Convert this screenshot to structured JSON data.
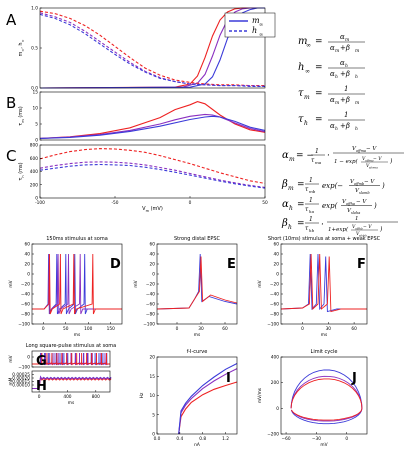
{
  "panel_letters": [
    "A",
    "B",
    "C"
  ],
  "colors": {
    "red": "#ee2222",
    "blue": "#3b3bd9",
    "purple": "#8a30c0"
  },
  "legend_A": [
    "m",
    "h"
  ],
  "legend_A_sub": "∞",
  "equations": {
    "m_inf_lhs": "m",
    "h_inf_lhs": "h",
    "inf_sub": "∞",
    "eq_sign": "=",
    "m_inf_num": "α",
    "m_inf_num_sub": "m",
    "m_inf_den": "α",
    "m_inf_den_sub": "m",
    "m_inf_den_plus": "+β",
    "h_inf_num": "α",
    "h_inf_num_sub": "h",
    "h_inf_den": "α",
    "h_inf_den_sub": "h",
    "h_inf_den_plus": "+β",
    "tau_m_lhs": "τ",
    "tau_m_sub": "m",
    "tau_m_num": "1",
    "tau_m_den": "α",
    "tau_h_lhs": "τ",
    "tau_h_sub": "h",
    "tau_h_num": "1",
    "tau_h_den": "α",
    "alpha_m_lhs": "α",
    "alpha_m_rhs": "= −",
    "alpha_m_frac_num": "1",
    "alpha_m_frac_den": "τ",
    "alpha_m_frac_den_sub": "ma",
    "alpha_m_cdot": "·",
    "alpha_m_num": "V",
    "alpha_m_num_sub": "offma",
    "alpha_m_num_rest": " − V",
    "alpha_m_den": "1 − exp(",
    "alpha_m_den_v": "V",
    "alpha_m_den_v_sub": "offma",
    "alpha_m_den_rest": " − V",
    "alpha_m_den_slope": "V",
    "alpha_m_den_slope_sub": "sloma",
    "alpha_m_den_close": ")",
    "beta_m_lhs": "β",
    "beta_m_sub": "m",
    "beta_m_eq": "=",
    "beta_m_frac_num": "1",
    "beta_m_frac_den": "τ",
    "beta_m_frac_den_sub": "mb",
    "beta_m_exp": "exp(−",
    "beta_m_exp_num": "V",
    "beta_m_exp_num_sub": "offmb",
    "beta_m_exp_num_rest": " − V",
    "beta_m_exp_den": "V",
    "beta_m_exp_den_sub": "slomb",
    "beta_m_close": ")",
    "alpha_h_lhs": "α",
    "alpha_h_sub": "h",
    "alpha_h_eq": "=",
    "alpha_h_frac_num": "1",
    "alpha_h_frac_den": "τ",
    "alpha_h_frac_den_sub": "ha",
    "alpha_h_exp": "exp(",
    "alpha_h_exp_num": "V",
    "alpha_h_exp_num_sub": "offha",
    "alpha_h_exp_num_rest": " − V",
    "alpha_h_exp_den": "V",
    "alpha_h_exp_den_sub": "sloha",
    "alpha_h_close": ")",
    "beta_h_lhs": "β",
    "beta_h_sub": "h",
    "beta_h_eq": "=",
    "beta_h_frac_num": "1",
    "beta_h_frac_den": "τ",
    "beta_h_frac_den_sub": "hb",
    "beta_h_cdot": "·",
    "beta_h_num": "1",
    "beta_h_den": "1+exp(",
    "beta_h_den_v": "V",
    "beta_h_den_v_sub": "offhb",
    "beta_h_den_rest": " − V",
    "beta_h_den_slope": "V",
    "beta_h_den_slope_sub": "slohb",
    "beta_h_den_close": ")"
  },
  "chart_data": [
    {
      "panel": "A",
      "type": "line",
      "xlim": [
        -100,
        50
      ],
      "ylim": [
        0,
        1
      ],
      "ylabel": "m",
      "ylabel_sub": "∞",
      "ylabel_sep": ",",
      "ylabel2": "h",
      "ylabel2_sub": "∞",
      "yticks": [
        "0.0",
        "0.5",
        "1.0"
      ],
      "xticks": [],
      "series": [
        {
          "color": "red",
          "dashed": false,
          "x": [
            -100,
            -10,
            0,
            5,
            10,
            15,
            20,
            25,
            30,
            35,
            50
          ],
          "y": [
            0,
            0.01,
            0.05,
            0.15,
            0.38,
            0.65,
            0.85,
            0.95,
            0.99,
            1,
            1
          ]
        },
        {
          "color": "purple",
          "dashed": false,
          "x": [
            -100,
            -5,
            5,
            10,
            15,
            20,
            25,
            30,
            35,
            40,
            50
          ],
          "y": [
            0,
            0.01,
            0.06,
            0.17,
            0.4,
            0.66,
            0.85,
            0.95,
            0.99,
            1,
            1
          ]
        },
        {
          "color": "blue",
          "dashed": false,
          "x": [
            -100,
            0,
            10,
            15,
            20,
            25,
            30,
            35,
            40,
            45,
            50
          ],
          "y": [
            0,
            0.01,
            0.05,
            0.14,
            0.35,
            0.62,
            0.83,
            0.94,
            0.98,
            1,
            1
          ]
        },
        {
          "color": "red",
          "dashed": true,
          "x": [
            -100,
            -90,
            -80,
            -70,
            -60,
            -50,
            -40,
            -30,
            -20,
            -10,
            0,
            10,
            20,
            30,
            40,
            50
          ],
          "y": [
            0.96,
            0.93,
            0.87,
            0.78,
            0.66,
            0.52,
            0.38,
            0.25,
            0.16,
            0.1,
            0.07,
            0.05,
            0.04,
            0.04,
            0.03,
            0.03
          ]
        },
        {
          "color": "purple",
          "dashed": true,
          "x": [
            -100,
            -90,
            -80,
            -70,
            -60,
            -50,
            -40,
            -30,
            -20,
            -10,
            0,
            10,
            20,
            30,
            40,
            50
          ],
          "y": [
            0.94,
            0.89,
            0.82,
            0.71,
            0.58,
            0.45,
            0.32,
            0.21,
            0.13,
            0.08,
            0.05,
            0.04,
            0.03,
            0.03,
            0.03,
            0.02
          ]
        },
        {
          "color": "blue",
          "dashed": true,
          "x": [
            -100,
            -90,
            -80,
            -70,
            -60,
            -50,
            -40,
            -30,
            -20,
            -10,
            0,
            10,
            20,
            30,
            40,
            50
          ],
          "y": [
            0.92,
            0.87,
            0.79,
            0.68,
            0.55,
            0.42,
            0.3,
            0.2,
            0.12,
            0.08,
            0.05,
            0.04,
            0.03,
            0.03,
            0.02,
            0.02
          ]
        }
      ]
    },
    {
      "panel": "B",
      "type": "line",
      "xlim": [
        -100,
        50
      ],
      "ylim": [
        0,
        15
      ],
      "ylabel": "τ",
      "ylabel_sub": "m",
      "ylabel_unit": " (ms)",
      "yticks": [
        "0",
        "5",
        "10",
        "15"
      ],
      "xticks": [],
      "series": [
        {
          "color": "red",
          "dashed": false,
          "x": [
            -100,
            -80,
            -60,
            -40,
            -20,
            -10,
            0,
            5,
            10,
            20,
            30,
            40,
            50
          ],
          "y": [
            0.5,
            1,
            2,
            3.8,
            7,
            9.5,
            11,
            12,
            11.3,
            7.8,
            5,
            3.2,
            2.4
          ]
        },
        {
          "color": "purple",
          "dashed": false,
          "x": [
            -100,
            -80,
            -60,
            -40,
            -20,
            -10,
            0,
            10,
            15,
            20,
            30,
            40,
            50
          ],
          "y": [
            0.5,
            0.9,
            1.7,
            3,
            5,
            6.3,
            7.4,
            8,
            7.8,
            7.2,
            5.3,
            3.6,
            2.6
          ]
        },
        {
          "color": "blue",
          "dashed": false,
          "x": [
            -100,
            -80,
            -60,
            -40,
            -20,
            0,
            10,
            15,
            20,
            30,
            40,
            50
          ],
          "y": [
            0.5,
            0.8,
            1.5,
            2.7,
            4.3,
            6.4,
            7.2,
            7.4,
            7.2,
            5.8,
            4,
            3
          ]
        }
      ]
    },
    {
      "panel": "C",
      "type": "line",
      "xlim": [
        -100,
        50
      ],
      "ylim": [
        0,
        800
      ],
      "ylabel": "τ",
      "ylabel_sub": "h",
      "ylabel_unit": " (ms)",
      "yticks": [
        "0",
        "200",
        "400",
        "600",
        "800"
      ],
      "xticks": [
        "-100",
        "-50",
        "0",
        "50"
      ],
      "xlabel": "V",
      "xlabel_sub": "m",
      "xlabel_unit": " (mV)",
      "series": [
        {
          "color": "red",
          "dashed": true,
          "x": [
            -100,
            -90,
            -80,
            -70,
            -60,
            -50,
            -40,
            -30,
            -20,
            -10,
            0,
            10,
            20,
            30,
            40,
            50
          ],
          "y": [
            590,
            650,
            700,
            730,
            745,
            740,
            720,
            690,
            640,
            580,
            520,
            450,
            380,
            320,
            260,
            220
          ]
        },
        {
          "color": "purple",
          "dashed": true,
          "x": [
            -100,
            -90,
            -80,
            -70,
            -60,
            -50,
            -40,
            -30,
            -20,
            -10,
            0,
            10,
            20,
            30,
            40,
            50
          ],
          "y": [
            450,
            490,
            520,
            540,
            545,
            540,
            525,
            500,
            460,
            420,
            370,
            320,
            270,
            230,
            190,
            160
          ]
        },
        {
          "color": "blue",
          "dashed": true,
          "x": [
            -100,
            -90,
            -80,
            -70,
            -60,
            -50,
            -40,
            -30,
            -20,
            -10,
            0,
            10,
            20,
            30,
            40,
            50
          ],
          "y": [
            420,
            450,
            480,
            500,
            505,
            500,
            490,
            465,
            430,
            390,
            345,
            300,
            255,
            215,
            180,
            150
          ]
        }
      ]
    },
    {
      "panel": "D",
      "type": "line",
      "title": "150ms stimulus at soma",
      "xlim": [
        -25,
        175
      ],
      "ylim": [
        -100,
        60
      ],
      "xticks": [
        "0",
        "50",
        "100",
        "150"
      ],
      "yticks": [
        "−100",
        "−80",
        "−60",
        "−40",
        "−20",
        "0",
        "20",
        "40",
        "60"
      ],
      "xlabel": "ms",
      "ylabel": "mV"
    },
    {
      "panel": "E",
      "type": "line",
      "title": "Strong distal EPSC",
      "xlim": [
        -25,
        75
      ],
      "ylim": [
        -100,
        60
      ],
      "xticks": [
        "0",
        "30",
        "60"
      ],
      "yticks": [
        "−100",
        "−80",
        "−60",
        "−40",
        "−20",
        "0",
        "20",
        "40",
        "60"
      ],
      "xlabel": "ms",
      "ylabel": "mV"
    },
    {
      "panel": "F",
      "type": "line",
      "title": "Short (10ms) stimulus at soma + weak EPSC",
      "xlim": [
        -25,
        75
      ],
      "ylim": [
        -100,
        60
      ],
      "xticks": [
        "0",
        "30",
        "60"
      ],
      "yticks": [
        "−100",
        "−80",
        "−60",
        "−40",
        "−20",
        "0",
        "20",
        "40",
        "60"
      ],
      "xlabel": "ms",
      "ylabel": "mV"
    },
    {
      "panel": "G",
      "type": "line",
      "title": "Long square-pulse stimulus at soma",
      "xlim": [
        -100,
        1000
      ],
      "ylim": [
        -100,
        60
      ],
      "xticks": [],
      "yticks": [
        "−100",
        "0"
      ],
      "ylabel": "mV"
    },
    {
      "panel": "H",
      "type": "line",
      "xlim": [
        -100,
        1000
      ],
      "ylim": [
        0,
        0.0003
      ],
      "xticks": [
        "0",
        "400",
        "800"
      ],
      "yticks": [
        "0.00010",
        "0.00015",
        "0.00020",
        "0.00025"
      ],
      "xlabel": "ms",
      "ylabel": "mM"
    },
    {
      "panel": "I",
      "type": "line",
      "title": "f-I-curve",
      "xlim": [
        0,
        1.4
      ],
      "ylim": [
        0,
        20
      ],
      "xticks": [
        "0.0",
        "0.4",
        "0.8",
        "1.2"
      ],
      "yticks": [
        "0",
        "5",
        "10",
        "15",
        "20"
      ],
      "xlabel": "nA",
      "ylabel": "Hz",
      "series": [
        {
          "color": "red",
          "x": [
            0.38,
            0.42,
            0.5,
            0.6,
            0.8,
            1.0,
            1.2,
            1.4
          ],
          "y": [
            0,
            4.5,
            6.5,
            8.2,
            10.2,
            11.6,
            12.6,
            13.5
          ]
        },
        {
          "color": "purple",
          "x": [
            0.38,
            0.42,
            0.5,
            0.6,
            0.8,
            1.0,
            1.2,
            1.4
          ],
          "y": [
            0,
            5.5,
            7.5,
            9.2,
            11.8,
            13.8,
            15.5,
            17
          ]
        },
        {
          "color": "blue",
          "x": [
            0.38,
            0.42,
            0.5,
            0.6,
            0.8,
            1.0,
            1.2,
            1.4
          ],
          "y": [
            0,
            6,
            8,
            9.8,
            12.6,
            14.8,
            16.8,
            18.3
          ]
        }
      ]
    },
    {
      "panel": "J",
      "type": "line",
      "title": "Limit cycle",
      "xlim": [
        -65,
        20
      ],
      "ylim": [
        -200,
        400
      ],
      "xticks": [
        "−60",
        "−30",
        "0"
      ],
      "yticks": [
        "−200",
        "0",
        "200",
        "400"
      ],
      "xlabel": "mV",
      "ylabel": "mV/ms"
    }
  ]
}
